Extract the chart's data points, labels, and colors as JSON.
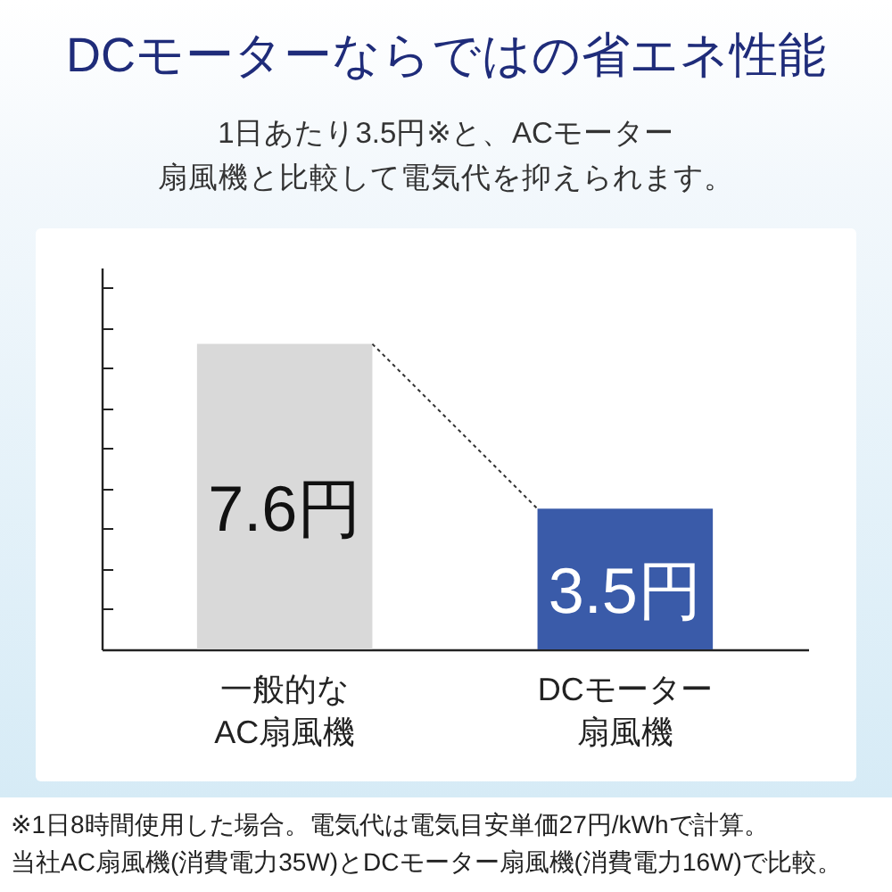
{
  "chart_data": {
    "type": "bar",
    "title": "DCモーターならではの省エネ性能",
    "subtitle": "1日あたり3.5円※と、ACモーター扇風機と比較して電気代を抑えられます。",
    "categories": [
      "一般的なAC扇風機",
      "DCモーター扇風機"
    ],
    "values": [
      7.6,
      3.5
    ],
    "colors": [
      "#d9d9d9",
      "#3a5ba9"
    ],
    "value_labels": [
      "7.6円",
      "3.5円"
    ],
    "ylim": [
      0,
      9.5
    ],
    "yticks": [
      {
        "value": 1,
        "label": null
      },
      {
        "value": 2,
        "label": null
      },
      {
        "value": 3,
        "label": null
      },
      {
        "value": 4,
        "label": null
      },
      {
        "value": 5,
        "label": null
      },
      {
        "value": 6,
        "label": null
      },
      {
        "value": 7,
        "label": null
      },
      {
        "value": 8,
        "label": null
      },
      {
        "value": 9,
        "label": null
      }
    ],
    "tick_labels": "x",
    "annotations": [
      "※1日8時間使用した場合。電気代は電気目安単価27円/kWhで計算。",
      "当社AC扇風機(消費電力35W)とDCモーター扇風機(消費電力16W)で比較。"
    ]
  }
}
